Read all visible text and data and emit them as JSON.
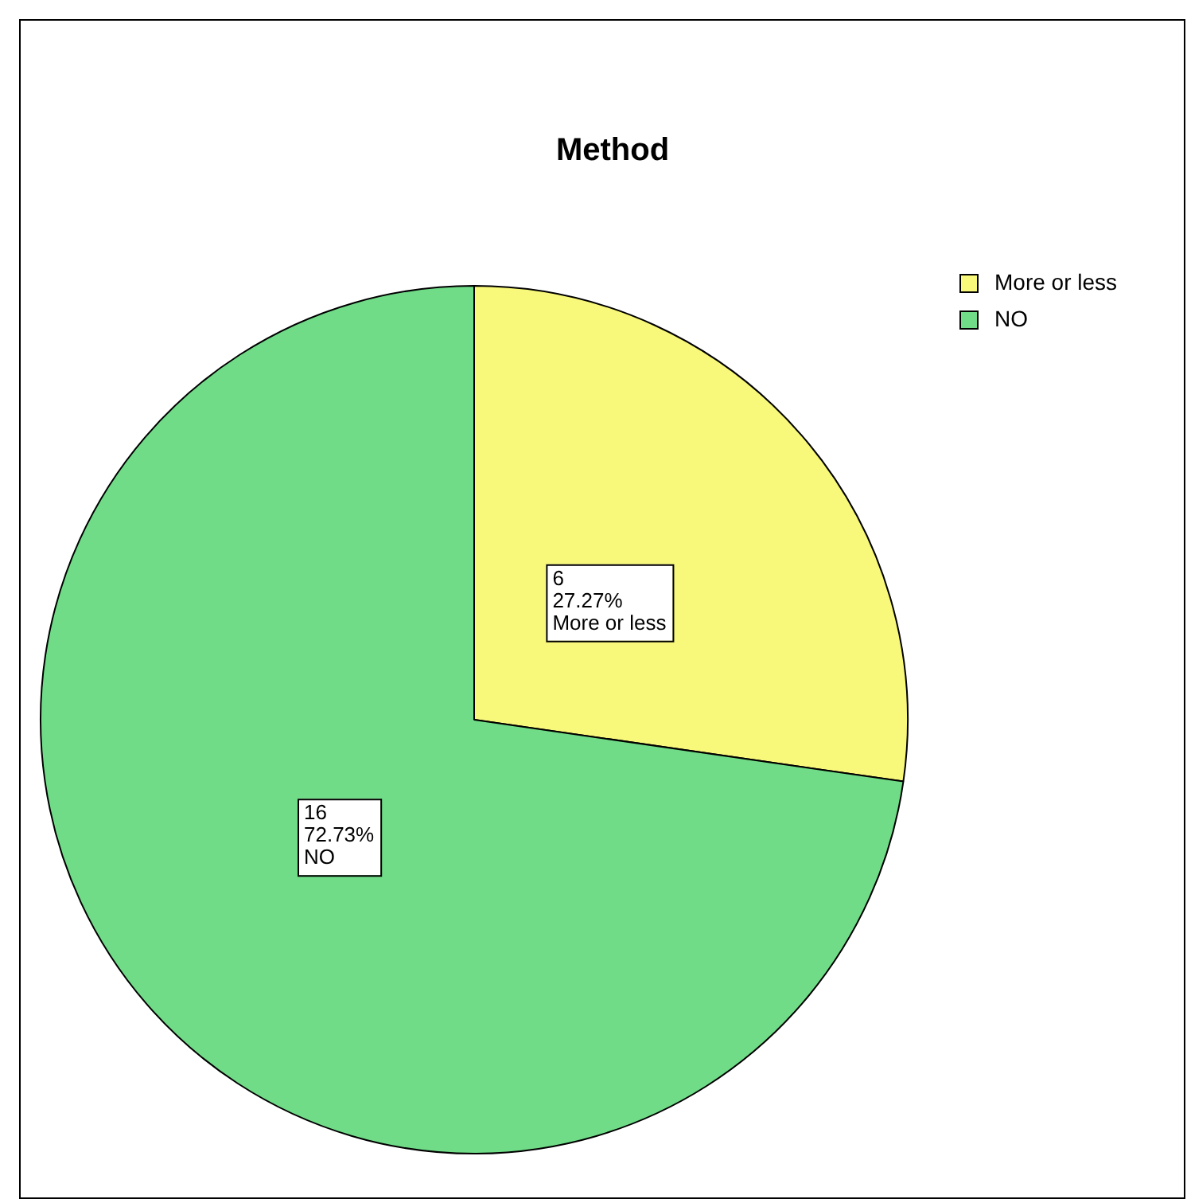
{
  "chart_data": {
    "type": "pie",
    "title": "Method",
    "categories": [
      "More or less",
      "NO"
    ],
    "values": [
      6,
      16
    ],
    "colors": [
      "#f8f87a",
      "#70dc88"
    ],
    "value_labels": [
      "6\n27.27%\nMore or less",
      "16\n72.73%\nNO"
    ],
    "legend": "top right"
  }
}
